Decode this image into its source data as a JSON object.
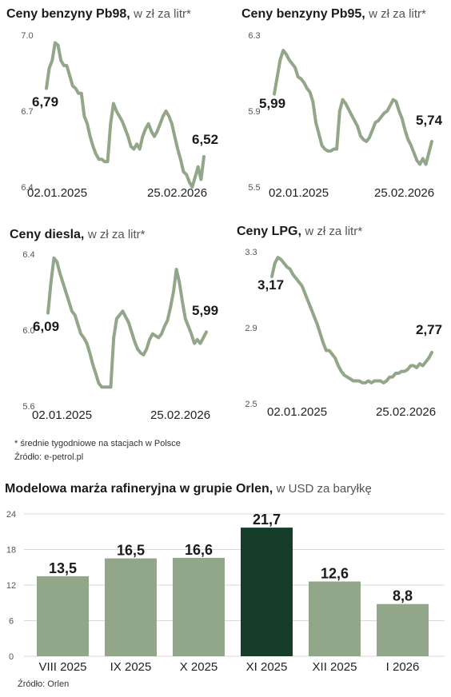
{
  "charts": [
    {
      "type": "line",
      "title": "Ceny benzyny Pb98,",
      "subtitle": "w zł za litr*",
      "yticks": [
        "7.0",
        "6.7",
        "6.4"
      ],
      "ylim": [
        6.4,
        7.0
      ],
      "x_start_label": "02.01.2025",
      "x_end_label": "25.02.2026",
      "start_value": "6,79",
      "end_value": "6,52",
      "y": [
        6.79,
        6.87,
        6.9,
        6.97,
        6.96,
        6.9,
        6.88,
        6.88,
        6.84,
        6.8,
        6.79,
        6.77,
        6.77,
        6.68,
        6.65,
        6.6,
        6.56,
        6.53,
        6.51,
        6.51,
        6.5,
        6.5,
        6.65,
        6.73,
        6.7,
        6.68,
        6.66,
        6.63,
        6.6,
        6.56,
        6.55,
        6.57,
        6.55,
        6.6,
        6.63,
        6.65,
        6.62,
        6.6,
        6.62,
        6.65,
        6.68,
        6.7,
        6.68,
        6.65,
        6.6,
        6.55,
        6.51,
        6.46,
        6.45,
        6.42,
        6.4,
        6.44,
        6.48,
        6.43,
        6.52
      ]
    },
    {
      "type": "line",
      "title": "Ceny benzyny Pb95,",
      "subtitle": "w zł za litr*",
      "yticks": [
        "6.3",
        "5.9",
        "5.5"
      ],
      "ylim": [
        5.5,
        6.3
      ],
      "x_start_label": "02.01.2025",
      "x_end_label": "25.02.2026",
      "start_value": "5,99",
      "end_value": "5,74",
      "y": [
        5.99,
        6.08,
        6.17,
        6.22,
        6.2,
        6.17,
        6.15,
        6.13,
        6.08,
        6.07,
        6.05,
        6.02,
        6.0,
        5.95,
        5.84,
        5.78,
        5.72,
        5.7,
        5.69,
        5.69,
        5.7,
        5.7,
        5.9,
        5.96,
        5.94,
        5.91,
        5.88,
        5.85,
        5.82,
        5.77,
        5.75,
        5.74,
        5.76,
        5.8,
        5.84,
        5.85,
        5.87,
        5.89,
        5.9,
        5.93,
        5.96,
        5.95,
        5.9,
        5.86,
        5.8,
        5.75,
        5.72,
        5.68,
        5.64,
        5.62,
        5.65,
        5.62,
        5.68,
        5.74
      ]
    },
    {
      "type": "line",
      "title": "Ceny diesla,",
      "subtitle": "w zł za litr*",
      "yticks": [
        "6.4",
        "6.0",
        "5.6"
      ],
      "ylim": [
        5.6,
        6.4
      ],
      "x_start_label": "02.01.2025",
      "x_end_label": "25.02.2026",
      "start_value": "6,09",
      "end_value": "5,99",
      "y": [
        6.09,
        6.25,
        6.38,
        6.36,
        6.3,
        6.25,
        6.2,
        6.15,
        6.1,
        6.08,
        6.03,
        5.98,
        5.96,
        5.93,
        5.88,
        5.82,
        5.77,
        5.72,
        5.7,
        5.7,
        5.7,
        5.7,
        5.96,
        6.06,
        6.08,
        6.1,
        6.07,
        6.04,
        5.99,
        5.94,
        5.9,
        5.88,
        5.87,
        5.9,
        5.95,
        5.98,
        5.97,
        5.96,
        5.98,
        6.02,
        6.05,
        6.12,
        6.2,
        6.32,
        6.25,
        6.15,
        6.06,
        6.02,
        5.98,
        5.93,
        5.95,
        5.93,
        5.96,
        5.99
      ]
    },
    {
      "type": "line",
      "title": "Ceny LPG,",
      "subtitle": "w zł za litr*",
      "yticks": [
        "3.3",
        "2.9",
        "2.5"
      ],
      "ylim": [
        2.5,
        3.3
      ],
      "x_start_label": "02.01.2025",
      "x_end_label": "25.02.2026",
      "start_value": "3,17",
      "end_value": "2,77",
      "y": [
        3.17,
        3.24,
        3.27,
        3.26,
        3.24,
        3.22,
        3.21,
        3.18,
        3.16,
        3.14,
        3.12,
        3.08,
        3.04,
        3.0,
        2.96,
        2.92,
        2.87,
        2.82,
        2.78,
        2.78,
        2.76,
        2.74,
        2.7,
        2.67,
        2.65,
        2.64,
        2.63,
        2.62,
        2.62,
        2.62,
        2.61,
        2.61,
        2.62,
        2.61,
        2.62,
        2.62,
        2.62,
        2.61,
        2.62,
        2.64,
        2.64,
        2.66,
        2.66,
        2.67,
        2.67,
        2.68,
        2.7,
        2.7,
        2.69,
        2.71,
        2.7,
        2.72,
        2.74,
        2.77
      ]
    }
  ],
  "footnote": "* średnie tygodniowe na stacjach w Polsce",
  "source1": "Źródło: e-petrol.pl",
  "bar_chart": {
    "type": "bar",
    "title": "Modelowa marża rafineryjna w grupie Orlen,",
    "subtitle": "w USD za baryłkę",
    "yticks": [
      "24",
      "18",
      "12",
      "6",
      "0"
    ],
    "ylim": [
      0,
      24
    ],
    "categories": [
      "VIII 2025",
      "IX 2025",
      "X 2025",
      "XI 2025",
      "XII 2025",
      "I 2026"
    ],
    "values": [
      13.5,
      16.5,
      16.6,
      21.7,
      12.6,
      8.8
    ],
    "value_labels": [
      "13,5",
      "16,5",
      "16,6",
      "21,7",
      "12,6",
      "8,8"
    ],
    "highlight_index": 3,
    "colors": {
      "bar": "#92a68a",
      "highlight": "#163d29",
      "line": "#92a68a"
    }
  },
  "source2": "Źródło: Orlen"
}
